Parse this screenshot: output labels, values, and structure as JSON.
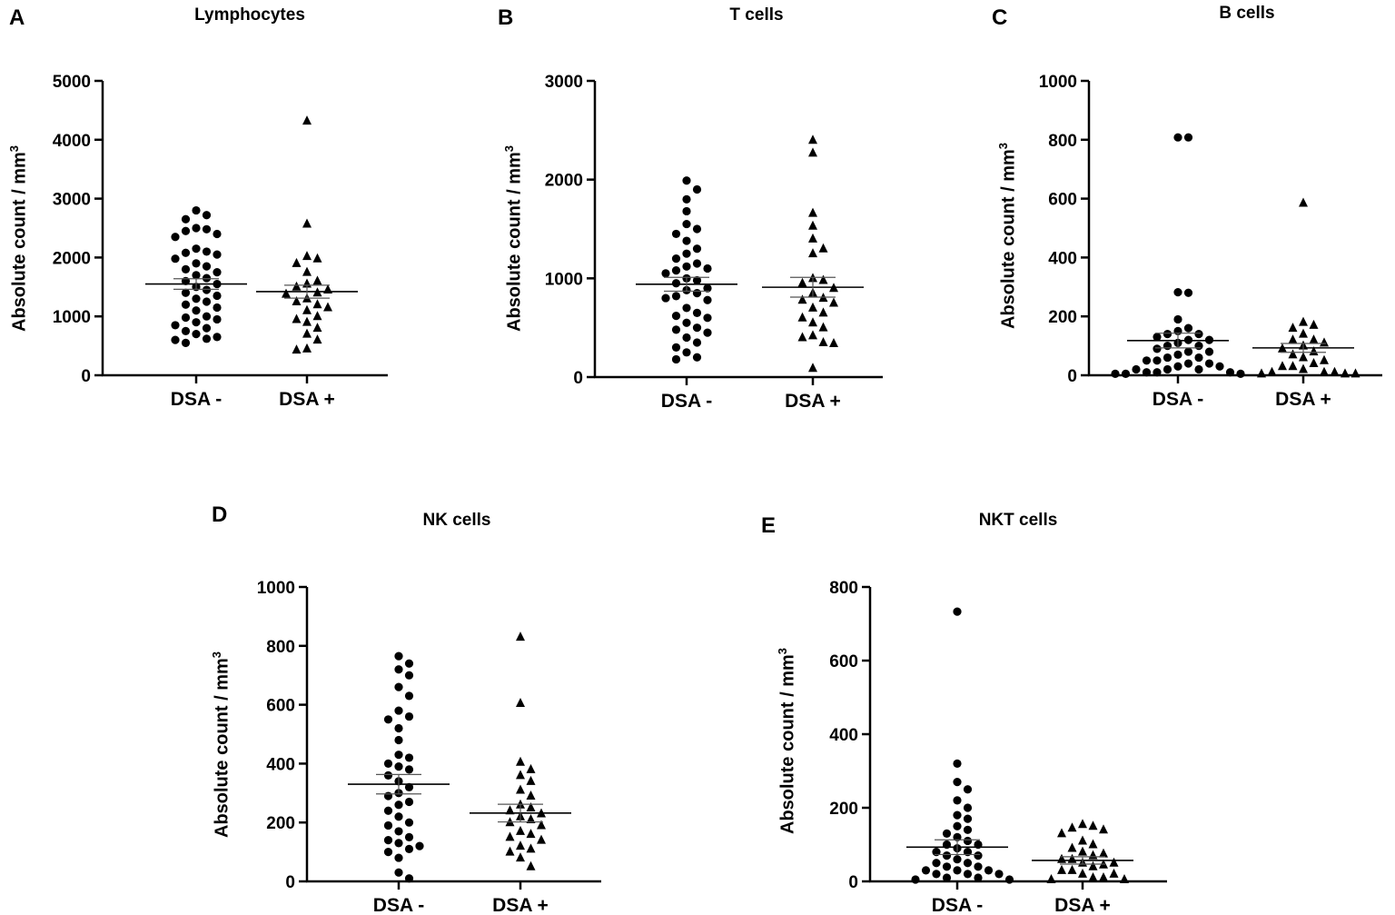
{
  "chart_data": [
    {
      "type": "scatter",
      "panel": "A",
      "title": "Lymphocytes",
      "ylabel": "Absolute count / mm",
      "ylabel_sup": "3",
      "categories": [
        "DSA -",
        "DSA +"
      ],
      "ylim": [
        0,
        5000
      ],
      "yticks": [
        0,
        1000,
        2000,
        3000,
        4000,
        5000
      ],
      "marker": [
        "circle",
        "triangle"
      ],
      "series": [
        {
          "name": "DSA -",
          "mean": 1550,
          "sem": 90,
          "values": [
            2800,
            2720,
            2650,
            2500,
            2480,
            2450,
            2400,
            2350,
            2150,
            2100,
            2080,
            2050,
            1980,
            1900,
            1850,
            1800,
            1750,
            1700,
            1650,
            1600,
            1550,
            1500,
            1450,
            1400,
            1350,
            1300,
            1250,
            1200,
            1150,
            1100,
            1000,
            980,
            950,
            900,
            850,
            800,
            750,
            700,
            650,
            620,
            600,
            550
          ]
        },
        {
          "name": "DSA +",
          "mean": 1420,
          "sem": 110,
          "values": [
            4320,
            2570,
            2020,
            1980,
            1900,
            1750,
            1600,
            1550,
            1500,
            1450,
            1400,
            1380,
            1300,
            1250,
            1200,
            1150,
            1100,
            1000,
            950,
            900,
            800,
            700,
            600,
            450,
            430
          ]
        }
      ]
    },
    {
      "type": "scatter",
      "panel": "B",
      "title": "T cells",
      "ylabel": "Absolute count / mm",
      "ylabel_sup": "3",
      "categories": [
        "DSA -",
        "DSA +"
      ],
      "ylim": [
        0,
        3000
      ],
      "yticks": [
        0,
        1000,
        2000,
        3000
      ],
      "marker": [
        "circle",
        "triangle"
      ],
      "series": [
        {
          "name": "DSA -",
          "mean": 940,
          "sem": 70,
          "values": [
            1990,
            1900,
            1800,
            1680,
            1550,
            1500,
            1450,
            1380,
            1300,
            1250,
            1200,
            1150,
            1120,
            1100,
            1080,
            1050,
            1000,
            980,
            950,
            900,
            880,
            850,
            820,
            800,
            780,
            700,
            650,
            620,
            600,
            550,
            500,
            480,
            450,
            400,
            350,
            300,
            250,
            200,
            180
          ]
        },
        {
          "name": "DSA +",
          "mean": 910,
          "sem": 100,
          "values": [
            2400,
            2270,
            1660,
            1530,
            1400,
            1300,
            1250,
            1000,
            980,
            950,
            900,
            850,
            800,
            780,
            750,
            700,
            650,
            600,
            550,
            500,
            420,
            400,
            350,
            340,
            90
          ]
        }
      ]
    },
    {
      "type": "scatter",
      "panel": "C",
      "title": "B cells",
      "ylabel": "Absolute count / mm",
      "ylabel_sup": "3",
      "categories": [
        "DSA -",
        "DSA +"
      ],
      "ylim": [
        0,
        1000
      ],
      "yticks": [
        0,
        200,
        400,
        600,
        800,
        1000
      ],
      "marker": [
        "circle",
        "triangle"
      ],
      "series": [
        {
          "name": "DSA -",
          "mean": 118,
          "sem": 25,
          "values": [
            808,
            808,
            282,
            280,
            190,
            160,
            150,
            140,
            140,
            130,
            120,
            120,
            110,
            100,
            100,
            90,
            80,
            80,
            70,
            60,
            60,
            50,
            50,
            40,
            40,
            30,
            30,
            20,
            20,
            20,
            10,
            10,
            10,
            5,
            5,
            5
          ]
        },
        {
          "name": "DSA +",
          "mean": 93,
          "sem": 15,
          "values": [
            585,
            180,
            170,
            160,
            140,
            120,
            120,
            110,
            100,
            90,
            80,
            70,
            60,
            50,
            40,
            30,
            30,
            20,
            10,
            10,
            10,
            5,
            5,
            5
          ]
        }
      ]
    },
    {
      "type": "scatter",
      "panel": "D",
      "title": "NK cells",
      "ylabel": "Absolute count / mm",
      "ylabel_sup": "3",
      "categories": [
        "DSA -",
        "DSA +"
      ],
      "ylim": [
        0,
        1000
      ],
      "yticks": [
        0,
        200,
        400,
        600,
        800,
        1000
      ],
      "marker": [
        "circle",
        "triangle"
      ],
      "series": [
        {
          "name": "DSA -",
          "mean": 330,
          "sem": 33,
          "values": [
            765,
            740,
            720,
            700,
            660,
            630,
            580,
            560,
            550,
            520,
            480,
            430,
            420,
            400,
            390,
            380,
            360,
            340,
            320,
            300,
            290,
            270,
            260,
            240,
            220,
            200,
            190,
            170,
            150,
            140,
            130,
            120,
            110,
            100,
            80,
            30,
            10
          ]
        },
        {
          "name": "DSA +",
          "mean": 232,
          "sem": 30,
          "values": [
            830,
            605,
            405,
            380,
            360,
            340,
            310,
            290,
            260,
            250,
            240,
            230,
            220,
            210,
            200,
            190,
            170,
            160,
            150,
            140,
            120,
            110,
            100,
            80,
            50
          ]
        }
      ]
    },
    {
      "type": "scatter",
      "panel": "E",
      "title": "NKT cells",
      "ylabel": "Absolute count / mm",
      "ylabel_sup": "3",
      "categories": [
        "DSA -",
        "DSA +"
      ],
      "ylim": [
        0,
        800
      ],
      "yticks": [
        0,
        200,
        400,
        600,
        800
      ],
      "marker": [
        "circle",
        "triangle"
      ],
      "series": [
        {
          "name": "DSA -",
          "mean": 93,
          "sem": 20,
          "values": [
            733,
            320,
            270,
            250,
            220,
            200,
            180,
            170,
            150,
            140,
            130,
            120,
            110,
            100,
            100,
            90,
            80,
            80,
            70,
            70,
            60,
            50,
            50,
            40,
            40,
            30,
            30,
            30,
            20,
            20,
            20,
            10,
            10,
            5,
            5
          ]
        },
        {
          "name": "DSA +",
          "mean": 57,
          "sem": 10,
          "values": [
            155,
            150,
            145,
            140,
            130,
            110,
            100,
            90,
            80,
            75,
            70,
            60,
            60,
            50,
            50,
            45,
            40,
            30,
            30,
            20,
            20,
            10,
            10,
            5,
            5
          ]
        }
      ]
    }
  ]
}
